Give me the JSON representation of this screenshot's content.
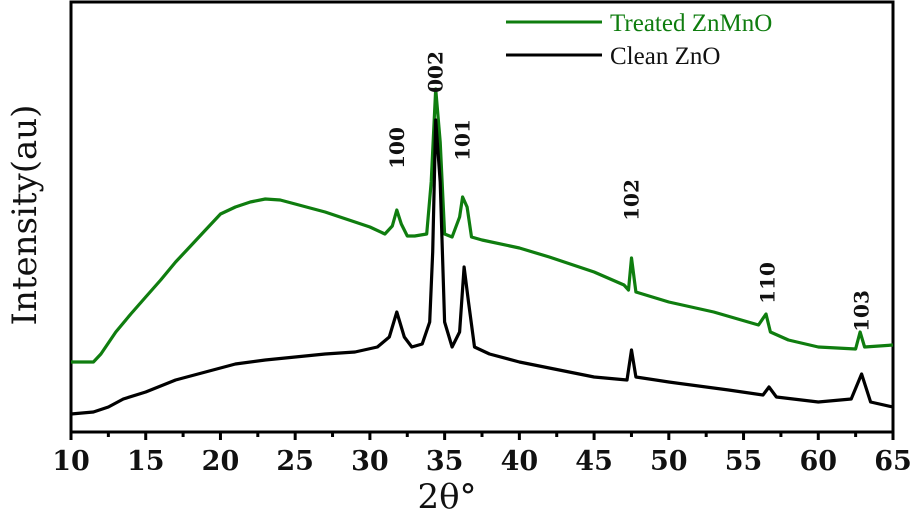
{
  "chart_data": {
    "type": "line",
    "title": "",
    "xlabel": "2θ°",
    "ylabel": "Intensity(au)",
    "xlim": [
      10,
      65
    ],
    "ylim": [
      0,
      430
    ],
    "x_ticks": [
      10,
      15,
      20,
      25,
      30,
      35,
      40,
      45,
      50,
      55,
      60,
      65
    ],
    "x_minor_tick_step": 2.5,
    "y_ticks": [],
    "grid": false,
    "legend_position": "top-right",
    "legend": [
      {
        "name": "Treated ZnMnO",
        "color": "#0f7d0f"
      },
      {
        "name": "Clean ZnO",
        "color": "#000000"
      }
    ],
    "series": [
      {
        "name": "Treated ZnMnO",
        "color": "#0f7d0f",
        "x": [
          10,
          11.5,
          12,
          13,
          14,
          15,
          16,
          17,
          18,
          19,
          19.5,
          20,
          21,
          22,
          23,
          24,
          25,
          26,
          27,
          28,
          29,
          30,
          31,
          31.5,
          31.8,
          32.1,
          32.5,
          33,
          33.8,
          34.1,
          34.4,
          34.7,
          35,
          35.5,
          36,
          36.2,
          36.5,
          36.8,
          37.5,
          40,
          42,
          45,
          47,
          47.3,
          47.5,
          47.8,
          50,
          53,
          56,
          56.5,
          56.8,
          58,
          60,
          62.5,
          62.8,
          63.1,
          65
        ],
        "y": [
          70,
          70,
          78,
          100,
          118,
          135,
          152,
          170,
          186,
          202,
          210,
          218,
          225,
          230,
          233,
          232,
          228,
          224,
          220,
          215,
          210,
          205,
          198,
          206,
          222,
          208,
          196,
          196,
          198,
          250,
          343,
          290,
          198,
          195,
          215,
          235,
          225,
          195,
          192,
          184,
          175,
          160,
          147,
          142,
          174,
          140,
          130,
          120,
          107,
          118,
          100,
          92,
          85,
          83,
          100,
          85,
          87
        ]
      },
      {
        "name": "Clean ZnO",
        "color": "#000000",
        "x": [
          10,
          11.5,
          12.5,
          13.5,
          15,
          17,
          19,
          21,
          23,
          25,
          27,
          29,
          30.5,
          31.3,
          31.8,
          32.3,
          32.8,
          33.5,
          34,
          34.2,
          34.4,
          34.7,
          35,
          35.5,
          36,
          36.3,
          36.6,
          37,
          38,
          40,
          45,
          47.2,
          47.5,
          47.8,
          50,
          54,
          56.3,
          56.7,
          57.2,
          60,
          62.2,
          62.9,
          63.5,
          65
        ],
        "y": [
          18,
          20,
          25,
          33,
          40,
          52,
          60,
          68,
          72,
          75,
          78,
          80,
          85,
          95,
          120,
          95,
          85,
          88,
          110,
          180,
          312,
          250,
          110,
          85,
          100,
          165,
          130,
          85,
          78,
          70,
          55,
          52,
          82,
          55,
          50,
          42,
          37,
          45,
          35,
          30,
          33,
          58,
          30,
          25
        ]
      }
    ],
    "annotations": [
      {
        "text": "100",
        "x": 31.8
      },
      {
        "text": "002",
        "x": 34.4
      },
      {
        "text": "101",
        "x": 36.2
      },
      {
        "text": "102",
        "x": 47.5
      },
      {
        "text": "110",
        "x": 56.6
      },
      {
        "text": "103",
        "x": 62.9
      }
    ]
  }
}
